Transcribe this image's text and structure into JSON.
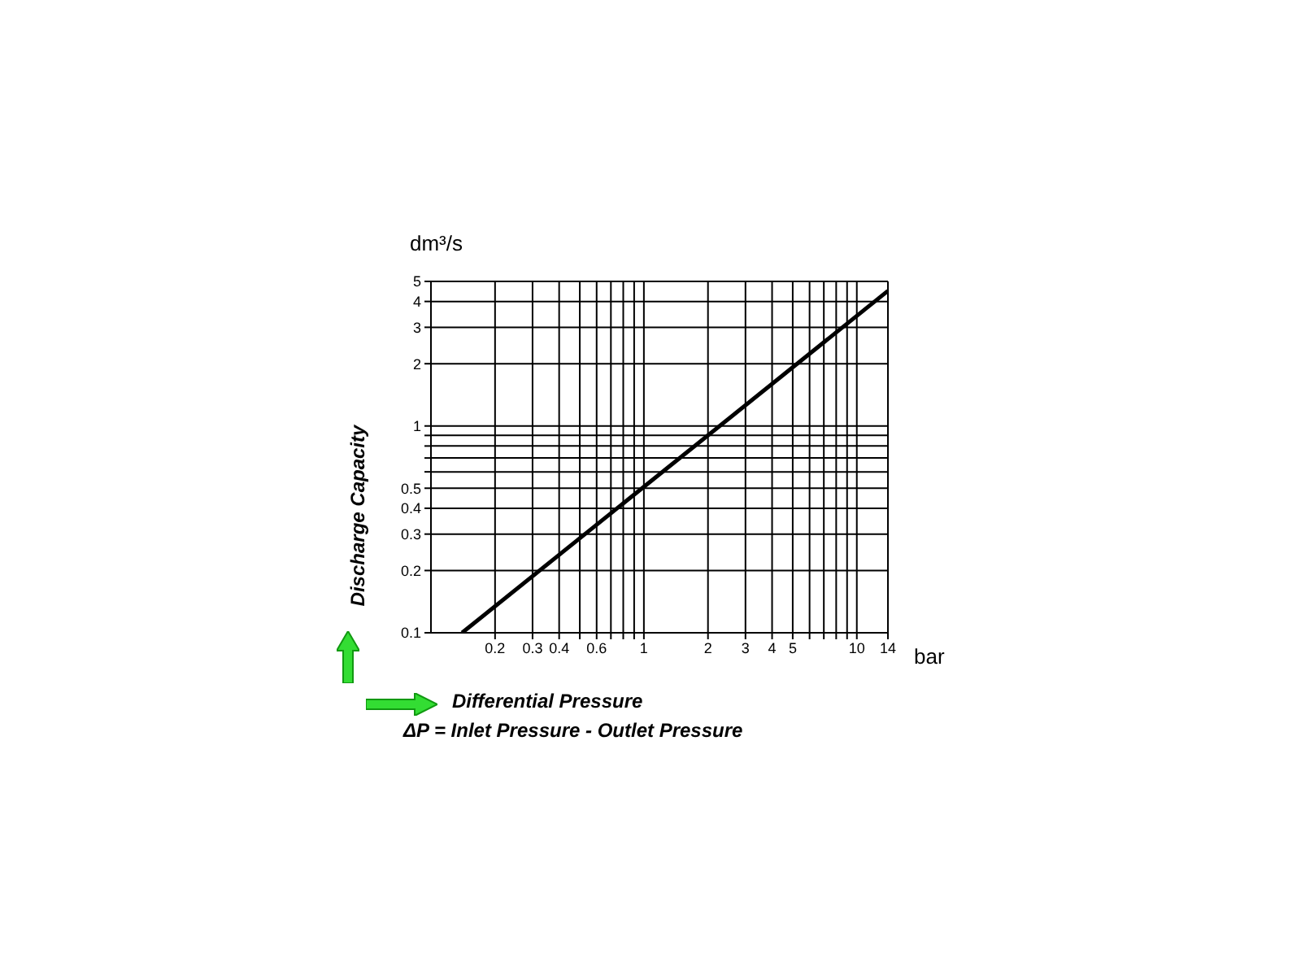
{
  "chart_data": {
    "type": "line",
    "xlabel": "Differential Pressure",
    "ylabel": "Discharge Capacity",
    "annotations": [
      "dm³/s",
      "bar",
      "ΔP = Inlet Pressure - Outlet Pressure"
    ],
    "x": [
      0.14,
      14
    ],
    "series": [
      {
        "color": "#000000",
        "values": [
          0.1,
          4.5
        ]
      }
    ],
    "log": "xy",
    "grid": true,
    "xlim": [
      0.1,
      14
    ],
    "ylim": [
      0.1,
      5
    ],
    "xticks": [
      0.2,
      0.3,
      0.4,
      {
        "value": 0.5,
        "label": null
      },
      0.6,
      {
        "value": 0.7,
        "label": null
      },
      {
        "value": 0.8,
        "label": null
      },
      {
        "value": 0.9,
        "label": null
      },
      1,
      2,
      3,
      4,
      5,
      {
        "value": 6,
        "label": null
      },
      {
        "value": 7,
        "label": null
      },
      {
        "value": 8,
        "label": null
      },
      {
        "value": 9,
        "label": null
      },
      10,
      14
    ],
    "yticks": [
      0.1,
      0.2,
      0.3,
      0.4,
      0.5,
      {
        "value": 0.6,
        "label": null
      },
      {
        "value": 0.7,
        "label": null
      },
      {
        "value": 0.8,
        "label": null
      },
      {
        "value": 0.9,
        "label": null
      },
      1,
      2,
      3,
      4,
      5
    ]
  }
}
